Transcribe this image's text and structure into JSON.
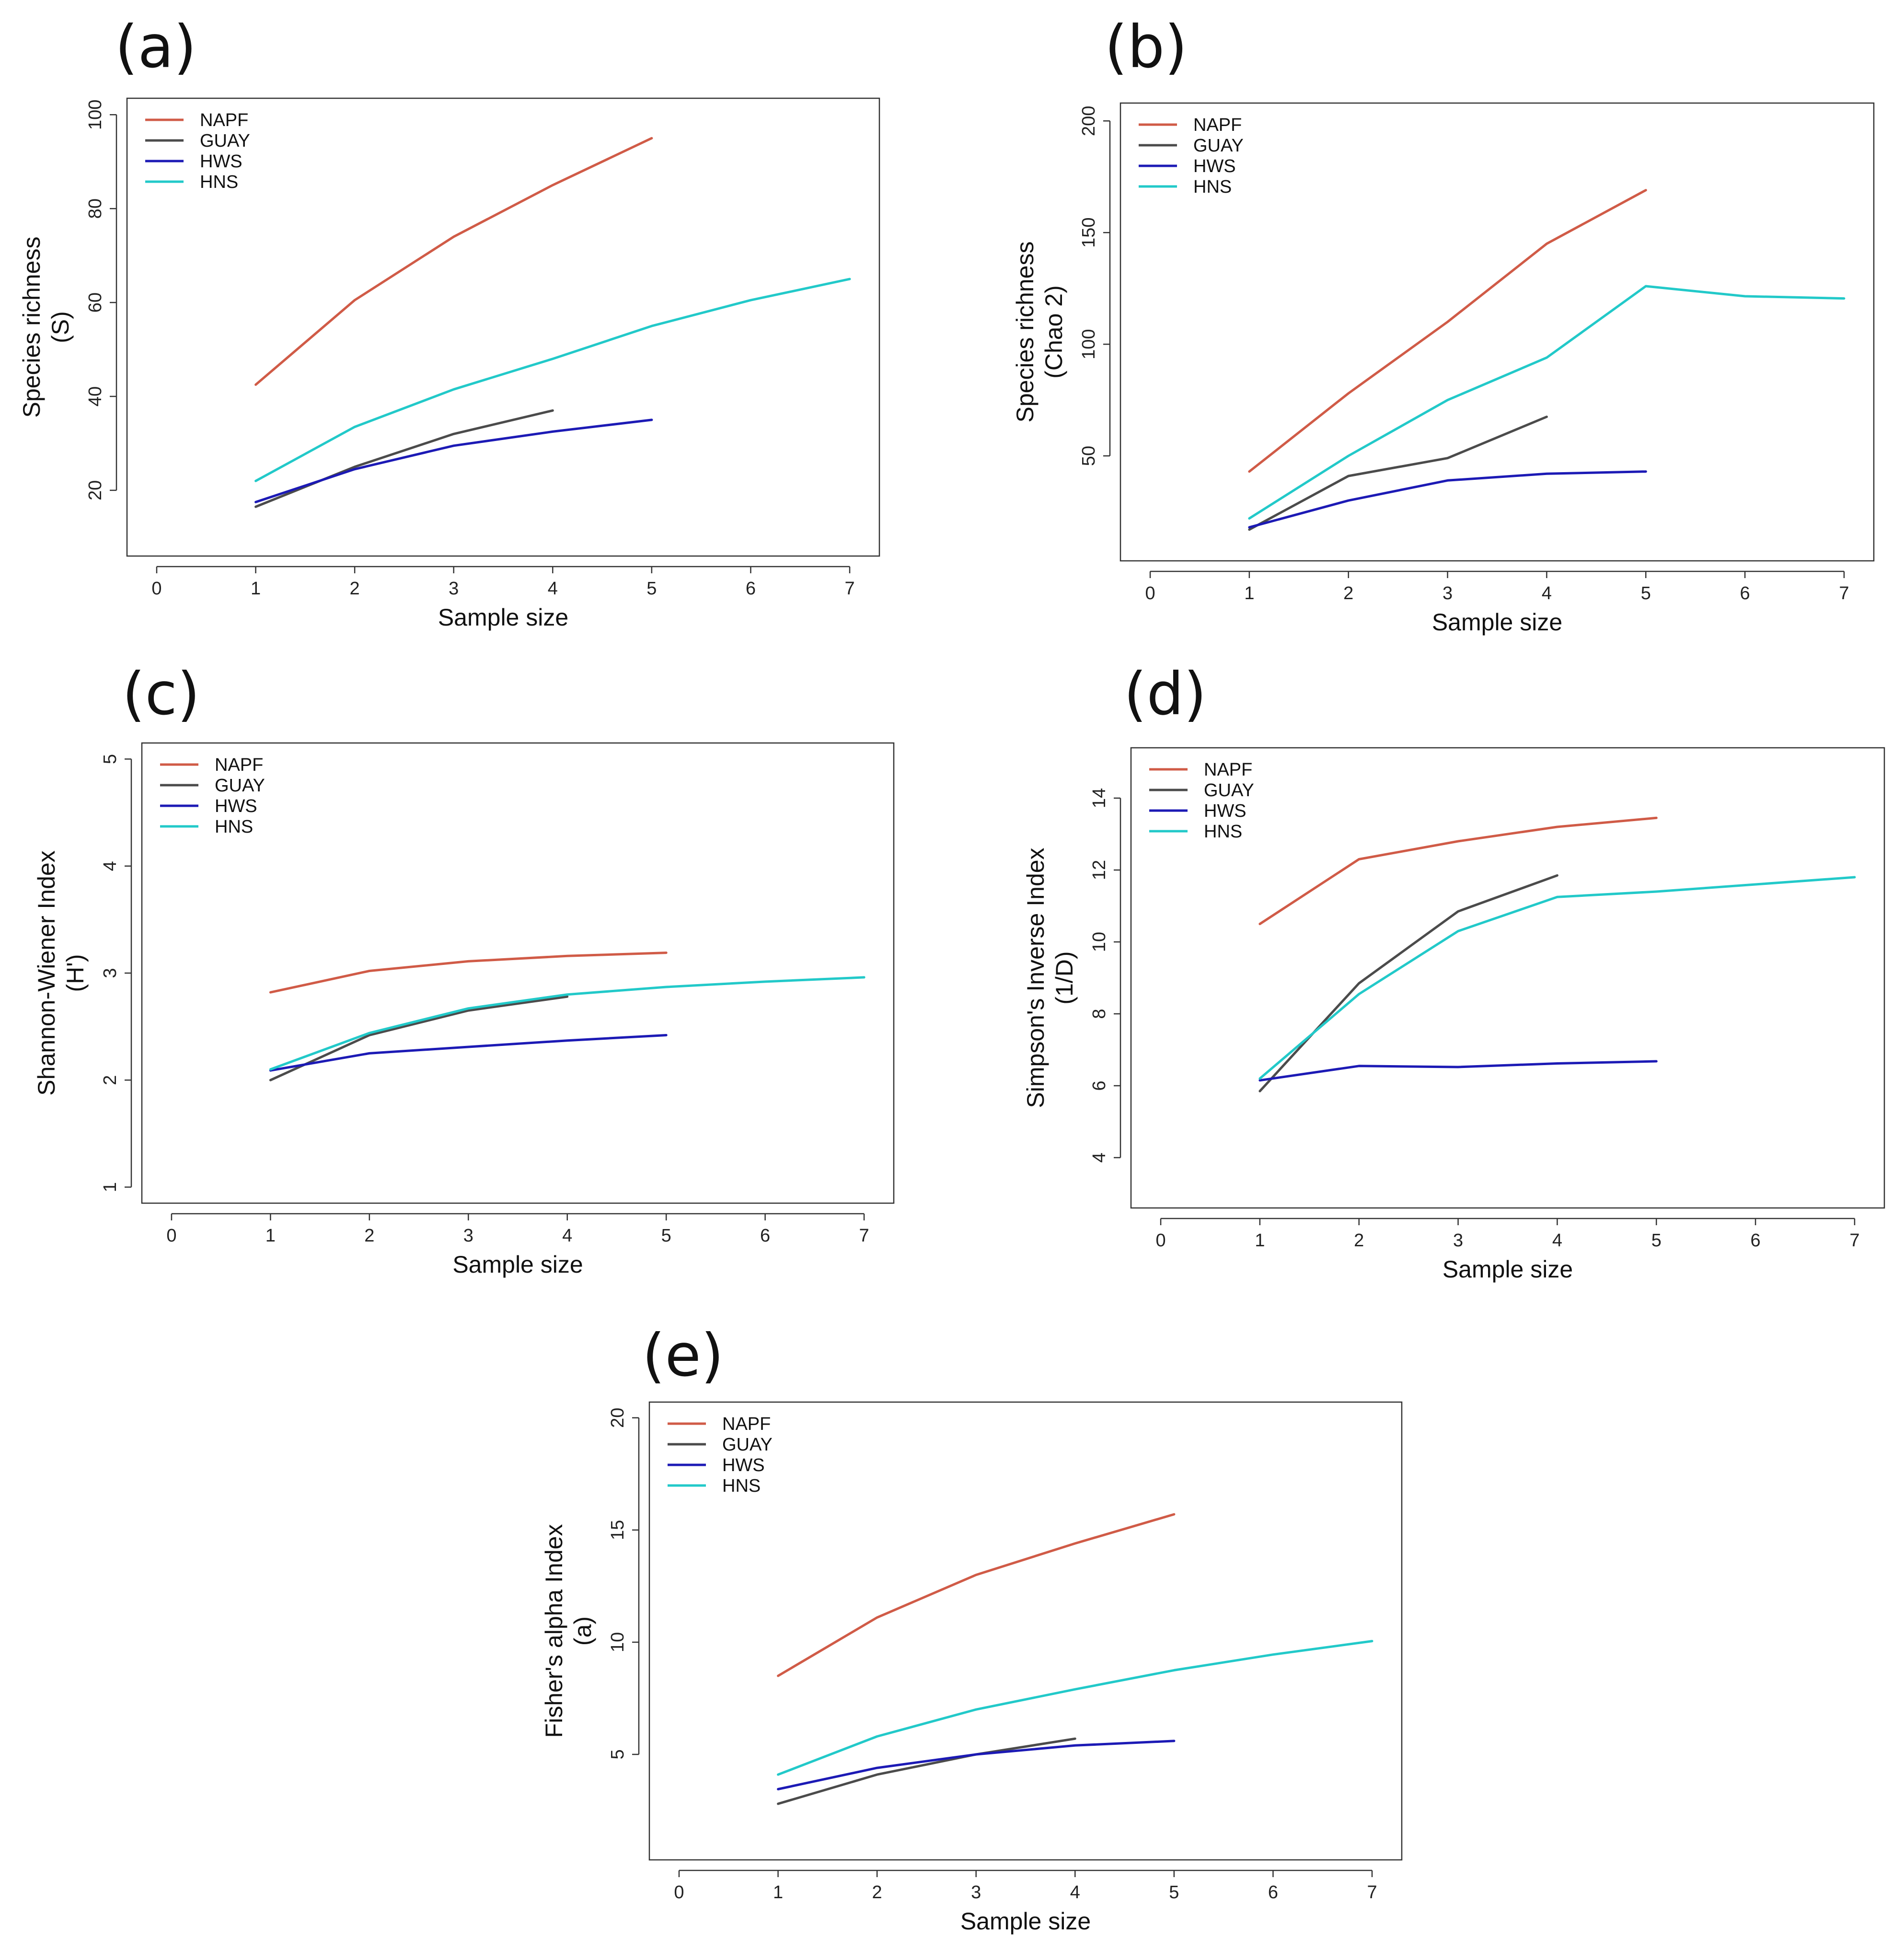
{
  "chart_data": [
    {
      "id": "a",
      "type": "line",
      "panel_label": "(a)",
      "title": "",
      "xlabel": "Sample size",
      "ylabel": [
        "Species richness",
        "(S)"
      ],
      "xlim": [
        -0.3,
        7.3
      ],
      "ylim": [
        6,
        103.5
      ],
      "xticks": [
        "0",
        "1",
        "2",
        "3",
        "4",
        "5",
        "6",
        "7"
      ],
      "yticks": [
        "20",
        "40",
        "60",
        "80",
        "100"
      ],
      "legend_position": "top-left",
      "grid": false,
      "series": [
        {
          "name": "NAPF",
          "color": "#d05b47",
          "x": [
            1,
            2,
            3,
            4,
            5
          ],
          "values": [
            42.5,
            60.5,
            74,
            85,
            95
          ]
        },
        {
          "name": "GUAY",
          "color": "#4b4b4b",
          "x": [
            1,
            2,
            3,
            4
          ],
          "values": [
            16.5,
            25,
            32,
            37
          ]
        },
        {
          "name": "HWS",
          "color": "#1c1ab5",
          "x": [
            1,
            2,
            3,
            4,
            5
          ],
          "values": [
            17.5,
            24.5,
            29.5,
            32.5,
            35
          ]
        },
        {
          "name": "HNS",
          "color": "#22c9c9",
          "x": [
            1,
            2,
            3,
            4,
            5,
            6,
            7
          ],
          "values": [
            22,
            33.5,
            41.5,
            48,
            55,
            60.5,
            65
          ]
        }
      ]
    },
    {
      "id": "b",
      "type": "line",
      "panel_label": "(b)",
      "title": "",
      "xlabel": "Sample size",
      "ylabel": [
        "Species richness",
        "(Chao 2)"
      ],
      "xlim": [
        -0.3,
        7.3
      ],
      "ylim": [
        3,
        208
      ],
      "xticks": [
        "0",
        "1",
        "2",
        "3",
        "4",
        "5",
        "6",
        "7"
      ],
      "yticks": [
        "50",
        "100",
        "150",
        "200"
      ],
      "legend_position": "top-left",
      "grid": false,
      "series": [
        {
          "name": "NAPF",
          "color": "#d05b47",
          "x": [
            1,
            2,
            3,
            4,
            5
          ],
          "values": [
            43,
            78,
            110,
            145,
            169
          ]
        },
        {
          "name": "GUAY",
          "color": "#4b4b4b",
          "x": [
            1,
            2,
            3,
            4
          ],
          "values": [
            17,
            41,
            49,
            67.5
          ]
        },
        {
          "name": "HWS",
          "color": "#1c1ab5",
          "x": [
            1,
            2,
            3,
            4,
            5
          ],
          "values": [
            18,
            30,
            39,
            42,
            43
          ]
        },
        {
          "name": "HNS",
          "color": "#22c9c9",
          "x": [
            1,
            2,
            3,
            4,
            5,
            6,
            7
          ],
          "values": [
            22,
            50,
            75,
            94,
            126,
            121.5,
            120.5
          ]
        }
      ]
    },
    {
      "id": "c",
      "type": "line",
      "panel_label": "(c)",
      "title": "",
      "xlabel": "Sample size",
      "ylabel": [
        "Shannon-Wiener Index",
        "(H')"
      ],
      "xlim": [
        -0.3,
        7.3
      ],
      "ylim": [
        0.85,
        5.15
      ],
      "xticks": [
        "0",
        "1",
        "2",
        "3",
        "4",
        "5",
        "6",
        "7"
      ],
      "yticks": [
        "1",
        "2",
        "3",
        "4",
        "5"
      ],
      "legend_position": "top-left",
      "grid": false,
      "series": [
        {
          "name": "NAPF",
          "color": "#d05b47",
          "x": [
            1,
            2,
            3,
            4,
            5
          ],
          "values": [
            2.82,
            3.02,
            3.11,
            3.16,
            3.19
          ]
        },
        {
          "name": "GUAY",
          "color": "#4b4b4b",
          "x": [
            1,
            2,
            3,
            4
          ],
          "values": [
            2.0,
            2.42,
            2.65,
            2.78
          ]
        },
        {
          "name": "HWS",
          "color": "#1c1ab5",
          "x": [
            1,
            2,
            3,
            4,
            5
          ],
          "values": [
            2.09,
            2.25,
            2.31,
            2.37,
            2.42
          ]
        },
        {
          "name": "HNS",
          "color": "#22c9c9",
          "x": [
            1,
            2,
            3,
            4,
            5,
            6,
            7
          ],
          "values": [
            2.1,
            2.44,
            2.67,
            2.8,
            2.87,
            2.92,
            2.96
          ]
        }
      ]
    },
    {
      "id": "d",
      "type": "line",
      "panel_label": "(d)",
      "title": "",
      "xlabel": "Sample size",
      "ylabel": [
        "Simpson's Inverse Index",
        "(1/D)"
      ],
      "xlim": [
        -0.3,
        7.3
      ],
      "ylim": [
        2.6,
        15.4
      ],
      "xticks": [
        "0",
        "1",
        "2",
        "3",
        "4",
        "5",
        "6",
        "7"
      ],
      "yticks": [
        "4",
        "6",
        "8",
        "10",
        "12",
        "14"
      ],
      "legend_position": "top-left",
      "grid": false,
      "series": [
        {
          "name": "NAPF",
          "color": "#d05b47",
          "x": [
            1,
            2,
            3,
            4,
            5
          ],
          "values": [
            10.5,
            12.3,
            12.8,
            13.2,
            13.45
          ]
        },
        {
          "name": "GUAY",
          "color": "#4b4b4b",
          "x": [
            1,
            2,
            3,
            4
          ],
          "values": [
            5.85,
            8.85,
            10.85,
            11.85
          ]
        },
        {
          "name": "HWS",
          "color": "#1c1ab5",
          "x": [
            1,
            2,
            3,
            4,
            5
          ],
          "values": [
            6.15,
            6.55,
            6.52,
            6.62,
            6.68
          ]
        },
        {
          "name": "HNS",
          "color": "#22c9c9",
          "x": [
            1,
            2,
            3,
            4,
            5,
            6,
            7
          ],
          "values": [
            6.2,
            8.55,
            10.3,
            11.25,
            11.4,
            11.6,
            11.8
          ]
        }
      ]
    },
    {
      "id": "e",
      "type": "line",
      "panel_label": "(e)",
      "title": "",
      "xlabel": "Sample size",
      "ylabel": [
        "Fisher's alpha Index",
        "(a)"
      ],
      "xlim": [
        -0.3,
        7.3
      ],
      "ylim": [
        0.3,
        20.7
      ],
      "xticks": [
        "0",
        "1",
        "2",
        "3",
        "4",
        "5",
        "6",
        "7"
      ],
      "yticks": [
        "5",
        "10",
        "15",
        "20"
      ],
      "legend_position": "top-left",
      "grid": false,
      "series": [
        {
          "name": "NAPF",
          "color": "#d05b47",
          "x": [
            1,
            2,
            3,
            4,
            5
          ],
          "values": [
            8.5,
            11.1,
            13.0,
            14.4,
            15.7
          ]
        },
        {
          "name": "GUAY",
          "color": "#4b4b4b",
          "x": [
            1,
            2,
            3,
            4
          ],
          "values": [
            2.8,
            4.1,
            5.0,
            5.7
          ]
        },
        {
          "name": "HWS",
          "color": "#1c1ab5",
          "x": [
            1,
            2,
            3,
            4,
            5
          ],
          "values": [
            3.45,
            4.4,
            5.0,
            5.4,
            5.6
          ]
        },
        {
          "name": "HNS",
          "color": "#22c9c9",
          "x": [
            1,
            2,
            3,
            4,
            5,
            6,
            7
          ],
          "values": [
            4.1,
            5.8,
            7.0,
            7.9,
            8.75,
            9.45,
            10.05
          ]
        }
      ]
    }
  ]
}
